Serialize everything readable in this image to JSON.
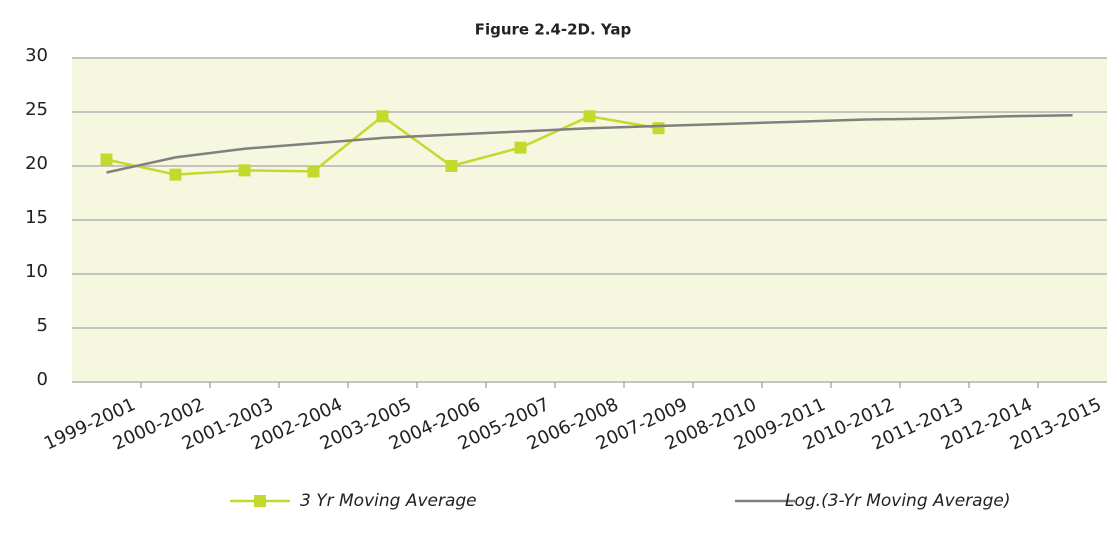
{
  "chart_data": {
    "type": "line",
    "title": "Figure 2.4-2D. Yap",
    "categories": [
      "1999-2001",
      "2000-2002",
      "2001-2003",
      "2002-2004",
      "2003-2005",
      "2004-2006",
      "2005-2007",
      "2006-2008",
      "2007-2009",
      "2008-2010",
      "2009-2011",
      "2010-2012",
      "2011-2013",
      "2012-2014",
      "2013-2015"
    ],
    "series": [
      {
        "name": "3 Yr Moving Average",
        "color": "#c5d82e",
        "marker": "square",
        "values": [
          20.6,
          19.2,
          19.6,
          19.5,
          24.6,
          20.0,
          21.7,
          24.6,
          23.5,
          null,
          null,
          null,
          null,
          null,
          null
        ]
      },
      {
        "name": "Log.(3-Yr Moving Average)",
        "color": "#808080",
        "marker": "none",
        "values": [
          19.4,
          20.8,
          21.6,
          22.1,
          22.6,
          22.9,
          23.2,
          23.5,
          23.7,
          23.9,
          24.1,
          24.3,
          24.4,
          24.6,
          24.7
        ]
      }
    ],
    "ylim": [
      0,
      30
    ],
    "yticks": [
      0,
      5,
      10,
      15,
      20,
      25,
      30
    ],
    "grid": true,
    "legend": "bottom",
    "plot_background": "#f5f7de"
  }
}
